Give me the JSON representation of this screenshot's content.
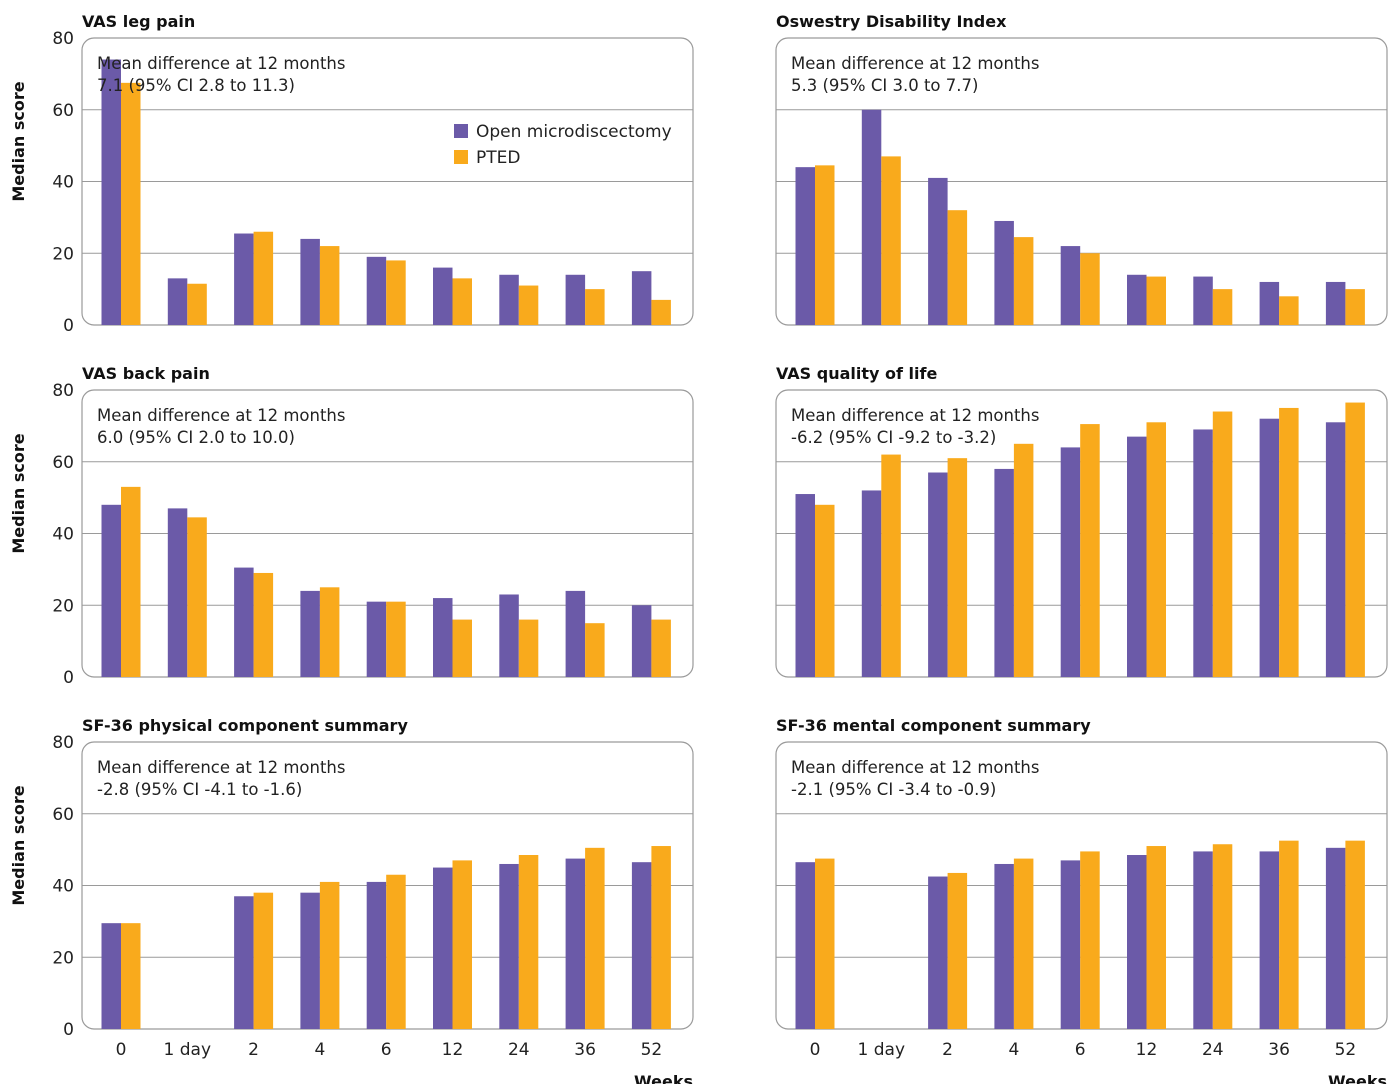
{
  "colors": {
    "open_microdiscectomy": "#6b5aa8",
    "pted": "#f9aa1c",
    "grid": "#9a9a9a",
    "frame": "#9a9a9a"
  },
  "axis": {
    "ylabel": "Median score",
    "xlabel": "Weeks"
  },
  "legend": {
    "entries": [
      "Open microdiscectomy",
      "PTED"
    ],
    "placement": "top-right of first panel"
  },
  "chart_data": [
    {
      "type": "bar",
      "title": "VAS leg pain",
      "annotation": [
        "Mean difference at 12 months",
        "7.1 (95% CI 2.8 to 11.3)"
      ],
      "categories": [
        "0",
        "1 day",
        "2",
        "4",
        "6",
        "12",
        "24",
        "36",
        "52"
      ],
      "ylim": [
        0,
        80
      ],
      "yticks": [
        0,
        20,
        40,
        60,
        80
      ],
      "grid": true,
      "series": [
        {
          "name": "Open microdiscectomy",
          "values": [
            74,
            13,
            25.5,
            24,
            19,
            16,
            14,
            14,
            15
          ]
        },
        {
          "name": "PTED",
          "values": [
            67.5,
            11.5,
            26,
            22,
            18,
            13,
            11,
            10,
            7
          ]
        }
      ]
    },
    {
      "type": "bar",
      "title": "Oswestry Disability Index",
      "annotation": [
        "Mean difference at 12 months",
        "5.3 (95% CI 3.0 to 7.7)"
      ],
      "categories": [
        "0",
        "1 day",
        "2",
        "4",
        "6",
        "12",
        "24",
        "36",
        "52"
      ],
      "ylim": [
        0,
        80
      ],
      "yticks": [
        0,
        20,
        40,
        60,
        80
      ],
      "grid": true,
      "series": [
        {
          "name": "Open microdiscectomy",
          "values": [
            44,
            60,
            41,
            29,
            22,
            14,
            13.5,
            12,
            12
          ]
        },
        {
          "name": "PTED",
          "values": [
            44.5,
            47,
            32,
            24.5,
            20,
            13.5,
            10,
            8,
            10
          ]
        }
      ]
    },
    {
      "type": "bar",
      "title": "VAS back pain",
      "annotation": [
        "Mean difference at 12 months",
        "6.0 (95% CI 2.0 to 10.0)"
      ],
      "categories": [
        "0",
        "1 day",
        "2",
        "4",
        "6",
        "12",
        "24",
        "36",
        "52"
      ],
      "ylim": [
        0,
        80
      ],
      "yticks": [
        0,
        20,
        40,
        60,
        80
      ],
      "grid": true,
      "series": [
        {
          "name": "Open microdiscectomy",
          "values": [
            48,
            47,
            30.5,
            24,
            21,
            22,
            23,
            24,
            20
          ]
        },
        {
          "name": "PTED",
          "values": [
            53,
            44.5,
            29,
            25,
            21,
            16,
            16,
            15,
            16
          ]
        }
      ]
    },
    {
      "type": "bar",
      "title": "VAS quality of life",
      "annotation": [
        "Mean difference at 12 months",
        "-6.2 (95% CI -9.2 to -3.2)"
      ],
      "categories": [
        "0",
        "1 day",
        "2",
        "4",
        "6",
        "12",
        "24",
        "36",
        "52"
      ],
      "ylim": [
        0,
        80
      ],
      "yticks": [
        0,
        20,
        40,
        60,
        80
      ],
      "grid": true,
      "series": [
        {
          "name": "Open microdiscectomy",
          "values": [
            51,
            52,
            57,
            58,
            64,
            67,
            69,
            72,
            71
          ]
        },
        {
          "name": "PTED",
          "values": [
            48,
            62,
            61,
            65,
            70.5,
            71,
            74,
            75,
            76.5
          ]
        }
      ]
    },
    {
      "type": "bar",
      "title": "SF-36 physical component summary",
      "annotation": [
        "Mean difference at 12 months",
        "-2.8 (95% CI -4.1 to -1.6)"
      ],
      "categories": [
        "0",
        "1 day",
        "2",
        "4",
        "6",
        "12",
        "24",
        "36",
        "52"
      ],
      "ylim": [
        0,
        80
      ],
      "yticks": [
        0,
        20,
        40,
        60,
        80
      ],
      "grid": true,
      "series": [
        {
          "name": "Open microdiscectomy",
          "values": [
            29.5,
            null,
            37,
            38,
            41,
            45,
            46,
            47.5,
            46.5
          ]
        },
        {
          "name": "PTED",
          "values": [
            29.5,
            null,
            38,
            41,
            43,
            47,
            48.5,
            50.5,
            51
          ]
        }
      ]
    },
    {
      "type": "bar",
      "title": "SF-36 mental component summary",
      "annotation": [
        "Mean difference at 12 months",
        "-2.1 (95% CI -3.4 to -0.9)"
      ],
      "categories": [
        "0",
        "1 day",
        "2",
        "4",
        "6",
        "12",
        "24",
        "36",
        "52"
      ],
      "ylim": [
        0,
        80
      ],
      "yticks": [
        0,
        20,
        40,
        60,
        80
      ],
      "grid": true,
      "series": [
        {
          "name": "Open microdiscectomy",
          "values": [
            46.5,
            null,
            42.5,
            46,
            47,
            48.5,
            49.5,
            49.5,
            50.5
          ]
        },
        {
          "name": "PTED",
          "values": [
            47.5,
            null,
            43.5,
            47.5,
            49.5,
            51,
            51.5,
            52.5,
            52.5
          ]
        }
      ]
    }
  ]
}
